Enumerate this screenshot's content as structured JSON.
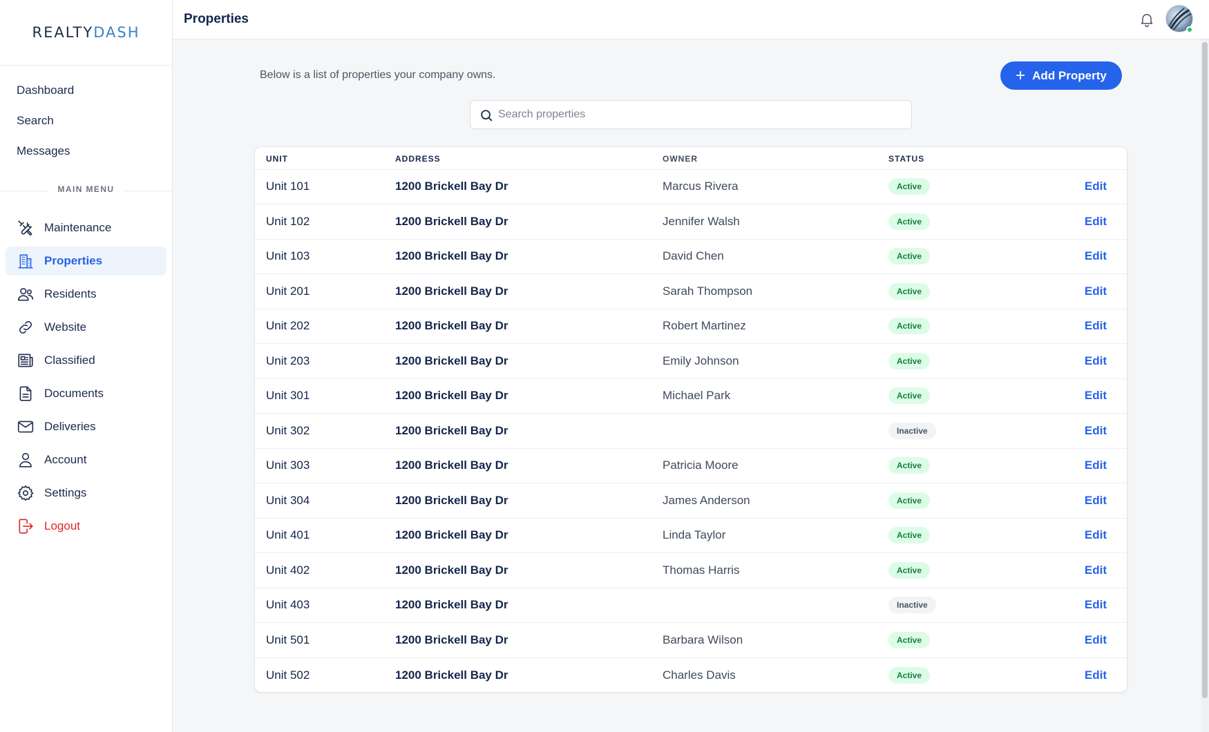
{
  "brand": {
    "name_part1": "REALTY",
    "name_part2": "DASH"
  },
  "header": {
    "title": "Properties"
  },
  "top_nav": [
    {
      "label": "Dashboard"
    },
    {
      "label": "Search"
    },
    {
      "label": "Messages"
    }
  ],
  "main_menu": {
    "section_label": "MAIN MENU",
    "items": [
      {
        "label": "Maintenance",
        "icon": "tools-icon"
      },
      {
        "label": "Properties",
        "icon": "building-icon",
        "active": true
      },
      {
        "label": "Residents",
        "icon": "users-icon"
      },
      {
        "label": "Website",
        "icon": "link-icon"
      },
      {
        "label": "Classified",
        "icon": "newspaper-icon"
      },
      {
        "label": "Documents",
        "icon": "document-icon"
      },
      {
        "label": "Deliveries",
        "icon": "envelope-icon"
      },
      {
        "label": "Account",
        "icon": "user-icon"
      },
      {
        "label": "Settings",
        "icon": "gear-icon"
      },
      {
        "label": "Logout",
        "icon": "logout-icon"
      }
    ]
  },
  "page": {
    "intro": "Below is a list of properties your company owns.",
    "add_button_label": "Add Property",
    "search_placeholder": "Search properties"
  },
  "table": {
    "columns": [
      "UNIT",
      "ADDRESS",
      "OWNER",
      "STATUS"
    ],
    "edit_label": "Edit",
    "rows": [
      {
        "unit": "Unit 101",
        "address": "1200 Brickell Bay Dr",
        "owner": "Marcus Rivera",
        "status": "Active"
      },
      {
        "unit": "Unit 102",
        "address": "1200 Brickell Bay Dr",
        "owner": "Jennifer Walsh",
        "status": "Active"
      },
      {
        "unit": "Unit 103",
        "address": "1200 Brickell Bay Dr",
        "owner": "David Chen",
        "status": "Active"
      },
      {
        "unit": "Unit 201",
        "address": "1200 Brickell Bay Dr",
        "owner": "Sarah Thompson",
        "status": "Active"
      },
      {
        "unit": "Unit 202",
        "address": "1200 Brickell Bay Dr",
        "owner": "Robert Martinez",
        "status": "Active"
      },
      {
        "unit": "Unit 203",
        "address": "1200 Brickell Bay Dr",
        "owner": "Emily Johnson",
        "status": "Active"
      },
      {
        "unit": "Unit 301",
        "address": "1200 Brickell Bay Dr",
        "owner": "Michael Park",
        "status": "Active"
      },
      {
        "unit": "Unit 302",
        "address": "1200 Brickell Bay Dr",
        "owner": "",
        "status": "Inactive"
      },
      {
        "unit": "Unit 303",
        "address": "1200 Brickell Bay Dr",
        "owner": "Patricia Moore",
        "status": "Active"
      },
      {
        "unit": "Unit 304",
        "address": "1200 Brickell Bay Dr",
        "owner": "James Anderson",
        "status": "Active"
      },
      {
        "unit": "Unit 401",
        "address": "1200 Brickell Bay Dr",
        "owner": "Linda Taylor",
        "status": "Active"
      },
      {
        "unit": "Unit 402",
        "address": "1200 Brickell Bay Dr",
        "owner": "Thomas Harris",
        "status": "Active"
      },
      {
        "unit": "Unit 403",
        "address": "1200 Brickell Bay Dr",
        "owner": "",
        "status": "Inactive"
      },
      {
        "unit": "Unit 501",
        "address": "1200 Brickell Bay Dr",
        "owner": "Barbara Wilson",
        "status": "Active"
      },
      {
        "unit": "Unit 502",
        "address": "1200 Brickell Bay Dr",
        "owner": "Charles Davis",
        "status": "Active"
      }
    ]
  },
  "colors": {
    "accent": "#2563eb",
    "active_badge_bg": "#dcfce7",
    "active_badge_text": "#15803d",
    "logout": "#dc2626"
  }
}
